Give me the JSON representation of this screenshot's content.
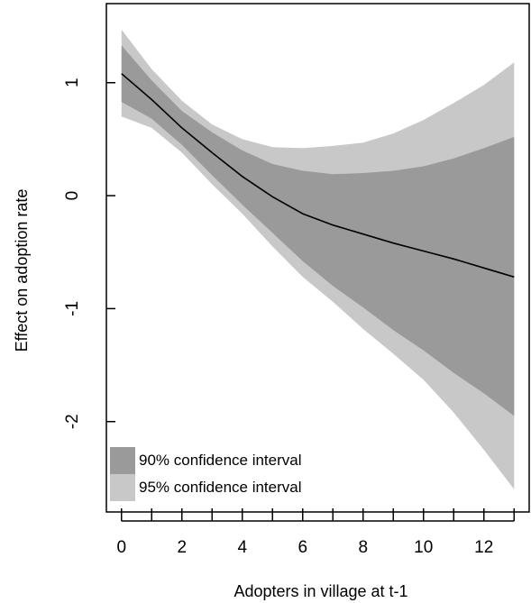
{
  "chart_data": {
    "type": "line",
    "title": "",
    "xlabel": "Adopters in village at t-1",
    "ylabel": "Effect on adoption rate",
    "xlim": [
      -0.5,
      13.5
    ],
    "ylim": [
      -2.8,
      1.7
    ],
    "x_ticks": [
      0,
      1,
      2,
      3,
      4,
      5,
      6,
      7,
      8,
      9,
      10,
      11,
      12,
      13
    ],
    "x_tick_labels": [
      {
        "value": 0,
        "label": "0"
      },
      {
        "value": 2,
        "label": "2"
      },
      {
        "value": 4,
        "label": "4"
      },
      {
        "value": 6,
        "label": "6"
      },
      {
        "value": 8,
        "label": "8"
      },
      {
        "value": 10,
        "label": "10"
      },
      {
        "value": 12,
        "label": "12"
      }
    ],
    "y_tick_labels": [
      {
        "value": -2,
        "label": "-2"
      },
      {
        "value": -1,
        "label": "-1"
      },
      {
        "value": 0,
        "label": "0"
      },
      {
        "value": 1,
        "label": "1"
      }
    ],
    "x": [
      0,
      1,
      2,
      3,
      4,
      5,
      6,
      7,
      8,
      9,
      10,
      11,
      12,
      13
    ],
    "series": [
      {
        "values": [
          1.08,
          0.85,
          0.6,
          0.38,
          0.17,
          -0.01,
          -0.16,
          -0.26,
          -0.34,
          -0.42,
          -0.49,
          -0.56,
          -0.64,
          -0.72
        ]
      }
    ],
    "ci90": {
      "lower": [
        0.83,
        0.68,
        0.45,
        0.18,
        -0.08,
        -0.33,
        -0.58,
        -0.8,
        -0.99,
        -1.19,
        -1.37,
        -1.57,
        -1.75,
        -1.95
      ],
      "upper": [
        1.33,
        1.02,
        0.75,
        0.56,
        0.4,
        0.28,
        0.22,
        0.19,
        0.2,
        0.22,
        0.26,
        0.33,
        0.42,
        0.52
      ]
    },
    "ci95": {
      "lower": [
        0.7,
        0.6,
        0.38,
        0.1,
        -0.16,
        -0.45,
        -0.72,
        -0.94,
        -1.18,
        -1.4,
        -1.63,
        -1.92,
        -2.25,
        -2.6
      ],
      "upper": [
        1.47,
        1.12,
        0.84,
        0.63,
        0.5,
        0.43,
        0.42,
        0.44,
        0.47,
        0.55,
        0.67,
        0.82,
        0.98,
        1.18
      ]
    },
    "legend": {
      "position": "bottom-left",
      "items": [
        {
          "label": "90% confidence interval",
          "color": "#9a9a9a"
        },
        {
          "label": "95% confidence interval",
          "color": "#c8c8c8"
        }
      ]
    },
    "colors": {
      "ci90": "#9a9a9a",
      "ci95": "#c8c8c8",
      "line": "#000000",
      "axis": "#000000"
    },
    "grid": false
  }
}
